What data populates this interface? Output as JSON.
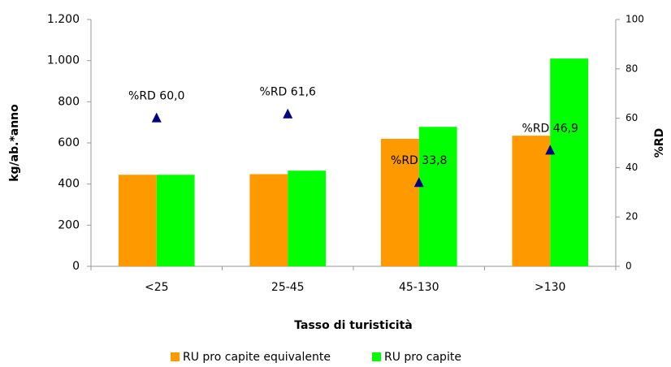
{
  "chart_data": {
    "type": "bar",
    "x_label": "Tasso di turisticità",
    "y_label": "kg/ab.*anno",
    "y2_label": "%RD",
    "categories": [
      "<25",
      "25-45",
      "45-130",
      ">130"
    ],
    "series": [
      {
        "name": "RU pro capite equivalente",
        "color": "#ff9900",
        "values": [
          445,
          448,
          620,
          635
        ]
      },
      {
        "name": "RU pro capite",
        "color": "#00ff00",
        "values": [
          445,
          465,
          678,
          1010
        ]
      },
      {
        "type": "scatter",
        "axis": "y2",
        "color": "#000080",
        "values": [
          60.0,
          61.6,
          33.8,
          46.9
        ],
        "value_labels": [
          "%RD 60,0",
          "%RD 61,6",
          "%RD 33,8",
          "%RD 46,9"
        ]
      }
    ],
    "ylim": [
      0,
      1200
    ],
    "yticks": [
      0,
      200,
      400,
      600,
      800,
      {
        "value": 1000,
        "label": "1.000"
      },
      {
        "value": 1200,
        "label": "1.200"
      }
    ],
    "y2lim": [
      0,
      100
    ],
    "y2ticks": [
      0,
      20,
      40,
      60,
      80,
      100
    ],
    "legend": "bottom"
  }
}
